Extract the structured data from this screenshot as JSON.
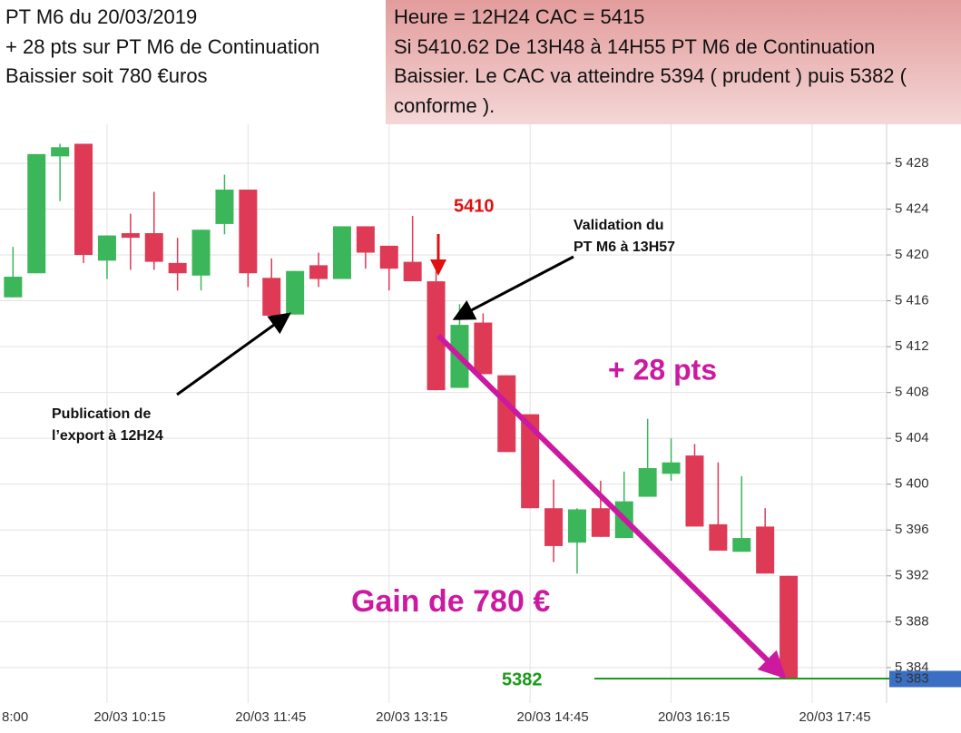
{
  "chart_data": {
    "type": "candlestick",
    "title_lines": [
      "PT M6 du 20/03/2019",
      "+ 28 pts sur PT M6 de Continuation",
      "Baissier soit 780 €uros"
    ],
    "comment_lines": [
      "Heure = 12H24 CAC = 5415",
      "Si 5410.62 De 13H48 à 14H55  PT M6 de Continuation",
      "Baissier. Le CAC va atteindre 5394 ( prudent ) puis 5382 (",
      "conforme )."
    ],
    "annotations": {
      "entry": "5410",
      "validation": [
        "Validation du",
        "PT M6 à 13H57"
      ],
      "gain_pts": "+ 28 pts",
      "publication": [
        "Publication de",
        "l’export à 12H24"
      ],
      "gain_eur": "Gain de 780 €",
      "target": "5382"
    },
    "up_color": "#3cb65a",
    "down_color": "#de3a55",
    "grid": true,
    "x": [
      555,
      570,
      585,
      600,
      615,
      630,
      645,
      660,
      675,
      690,
      705,
      720,
      735,
      750,
      765,
      780,
      795,
      810,
      825,
      840,
      855,
      870,
      885,
      900,
      915,
      930,
      945,
      960,
      975,
      990,
      1005,
      1020,
      1035,
      1050
    ],
    "series": [
      {
        "open": [
          5416.3,
          5418.4,
          5428.6,
          5429.7,
          5419.5,
          5421.9,
          5421.9,
          5419.3,
          5418.2,
          5422.7,
          5425.7,
          5418.0,
          5414.8,
          5419.1,
          5417.9,
          5422.5,
          5420.8,
          5419.4,
          5417.7,
          5408.4,
          5414.1,
          5409.5,
          5406.1,
          5397.9,
          5394.9,
          5397.9,
          5395.3,
          5398.9,
          5400.9,
          5402.5,
          5396.5,
          5394.1,
          5396.3,
          5392.0
        ],
        "high": [
          5420.7,
          5428.8,
          5429.7,
          5429.7,
          5421.7,
          5423.6,
          5425.5,
          5421.5,
          5422.2,
          5427.0,
          5425.7,
          5419.7,
          5418.6,
          5420.2,
          5422.5,
          5422.5,
          5420.8,
          5423.4,
          5418.6,
          5415.7,
          5414.9,
          5409.5,
          5406.1,
          5400.4,
          5397.9,
          5400.3,
          5401.1,
          5405.7,
          5404.0,
          5403.5,
          5401.9,
          5400.7,
          5397.9,
          5392.0
        ],
        "low": [
          5416.3,
          5418.4,
          5424.7,
          5419.3,
          5417.9,
          5418.7,
          5418.7,
          5416.9,
          5416.9,
          5421.8,
          5417.2,
          5414.7,
          5414.8,
          5417.2,
          5417.9,
          5418.8,
          5416.9,
          5417.7,
          5408.2,
          5408.4,
          5409.6,
          5402.8,
          5397.9,
          5393.2,
          5392.2,
          5395.4,
          5395.3,
          5398.9,
          5400.3,
          5396.3,
          5394.2,
          5394.1,
          5392.2,
          5383.0
        ],
        "close": [
          5418.1,
          5428.8,
          5429.4,
          5420.0,
          5421.7,
          5421.5,
          5419.4,
          5418.4,
          5422.2,
          5425.7,
          5418.4,
          5414.7,
          5418.6,
          5417.9,
          5422.5,
          5420.2,
          5418.8,
          5417.7,
          5408.2,
          5413.9,
          5409.6,
          5402.8,
          5397.9,
          5394.6,
          5397.8,
          5395.4,
          5398.5,
          5401.4,
          5401.9,
          5396.3,
          5394.2,
          5395.3,
          5392.2,
          5383.0
        ]
      }
    ],
    "xlim": [
      546.7,
      1112.5
    ],
    "xticks": [
      {
        "value": 525,
        "label": "8:00"
      },
      {
        "value": 615,
        "label": "20/03 10:15"
      },
      {
        "value": 705,
        "label": "20/03 11:45"
      },
      {
        "value": 795,
        "label": "20/03 13:15"
      },
      {
        "value": 885,
        "label": "20/03 14:45"
      },
      {
        "value": 975,
        "label": "20/03 16:15"
      },
      {
        "value": 1065,
        "label": "20/03 17:45"
      }
    ],
    "ylim": [
      5380.9,
      5431.4
    ],
    "yticks": [
      {
        "value": 5428,
        "label": "5 428"
      },
      {
        "value": 5424,
        "label": "5 424"
      },
      {
        "value": 5420,
        "label": "5 420"
      },
      {
        "value": 5416,
        "label": "5 416"
      },
      {
        "value": 5412,
        "label": "5 412"
      },
      {
        "value": 5408,
        "label": "5 408"
      },
      {
        "value": 5404,
        "label": "5 404"
      },
      {
        "value": 5400,
        "label": "5 400"
      },
      {
        "value": 5396,
        "label": "5 396"
      },
      {
        "value": 5392,
        "label": "5 392"
      },
      {
        "value": 5388,
        "label": "5 388"
      },
      {
        "value": 5384,
        "label": "5 384"
      }
    ],
    "last_price": {
      "value": 5383,
      "label": "5 383"
    }
  }
}
